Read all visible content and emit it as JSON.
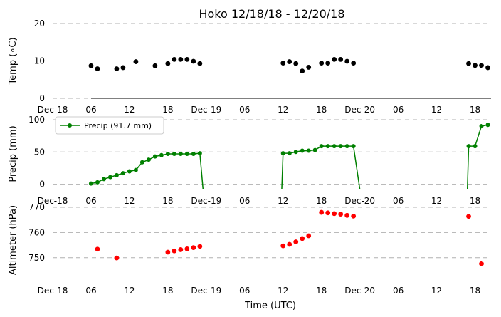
{
  "chart_data": {
    "title": "Hoko 12/18/18 - 12/20/18",
    "xlabel": "Time (UTC)",
    "x_ticks": [
      "Dec-18",
      "06",
      "12",
      "18",
      "Dec-19",
      "06",
      "12",
      "18",
      "Dec-20",
      "06",
      "12",
      "18"
    ],
    "x_tick_hours": [
      0,
      6,
      12,
      18,
      24,
      30,
      36,
      42,
      48,
      54,
      60,
      66
    ],
    "xlim": [
      0,
      68.5
    ],
    "panels": [
      {
        "type": "scatter",
        "name": "temperature",
        "ylabel": "Temp (∘C)",
        "ylim": [
          0,
          20
        ],
        "yticks": [
          0,
          10,
          20
        ],
        "color": "#000000",
        "x": [
          6,
          7,
          10,
          11,
          13,
          16,
          18,
          19,
          20,
          21,
          22,
          23,
          36,
          37,
          38,
          39,
          40,
          42,
          43,
          44,
          45,
          46,
          47,
          65,
          66,
          67,
          68
        ],
        "y": [
          8.7,
          7.9,
          7.9,
          8.2,
          9.8,
          8.7,
          9.3,
          10.4,
          10.4,
          10.4,
          9.9,
          9.3,
          9.4,
          9.8,
          9.3,
          7.3,
          8.3,
          9.4,
          9.4,
          10.4,
          10.4,
          9.9,
          9.4,
          9.3,
          8.8,
          8.8,
          8.2
        ]
      },
      {
        "type": "line",
        "name": "precipitation",
        "ylabel": "Precip (mm)",
        "ylim": [
          -6,
          100
        ],
        "yticks": [
          0,
          50,
          100
        ],
        "color": "#008000",
        "legend": "Precip (91.7 mm)",
        "segments": [
          {
            "x": [
              6,
              7,
              8,
              9,
              10,
              11,
              12,
              13,
              14,
              15,
              16,
              17,
              18,
              19,
              20,
              21,
              22,
              23,
              23.5
            ],
            "y": [
              1,
              3,
              8,
              11,
              14,
              17,
              20,
              22,
              34,
              38,
              43,
              45,
              47,
              47,
              47,
              47,
              47,
              48,
              -8
            ]
          },
          {
            "x": [
              35.8,
              36,
              37,
              38,
              39,
              40,
              41,
              42,
              43,
              44,
              45,
              46,
              47,
              48
            ],
            "y": [
              -8,
              48,
              48,
              50,
              52,
              52,
              53,
              59,
              59,
              59,
              59,
              59,
              59,
              -8
            ]
          },
          {
            "x": [
              64.8,
              65,
              66,
              67,
              68
            ],
            "y": [
              -8,
              59,
              59,
              90,
              92
            ]
          }
        ],
        "markers": [
          {
            "x": [
              6,
              7,
              8,
              9,
              10,
              11,
              12,
              13,
              14,
              15,
              16,
              17,
              18,
              19,
              20,
              21,
              22,
              23
            ],
            "y": [
              1,
              3,
              8,
              11,
              14,
              17,
              20,
              22,
              34,
              38,
              43,
              45,
              47,
              47,
              47,
              47,
              47,
              48
            ]
          },
          {
            "x": [
              36,
              37,
              38,
              39,
              40,
              41,
              42,
              43,
              44,
              45,
              46,
              47
            ],
            "y": [
              48,
              48,
              50,
              52,
              52,
              53,
              59,
              59,
              59,
              59,
              59,
              59
            ]
          },
          {
            "x": [
              65,
              66,
              67,
              68
            ],
            "y": [
              59,
              59,
              90,
              92
            ]
          }
        ]
      },
      {
        "type": "scatter",
        "name": "altimeter",
        "ylabel": "Altimeter (hPa)",
        "ylim": [
          744,
          770
        ],
        "yticks": [
          750,
          760,
          770
        ],
        "color": "#ff0000",
        "x": [
          7,
          10,
          18,
          19,
          20,
          21,
          22,
          23,
          36,
          37,
          38,
          39,
          40,
          42,
          43,
          44,
          45,
          46,
          47,
          65,
          67
        ],
        "y": [
          753.4,
          749.9,
          752.2,
          752.7,
          753.2,
          753.5,
          754.0,
          754.5,
          754.7,
          755.3,
          756.3,
          757.6,
          758.7,
          768.0,
          767.8,
          767.5,
          767.3,
          766.8,
          766.5,
          766.4,
          747.6
        ]
      }
    ]
  }
}
